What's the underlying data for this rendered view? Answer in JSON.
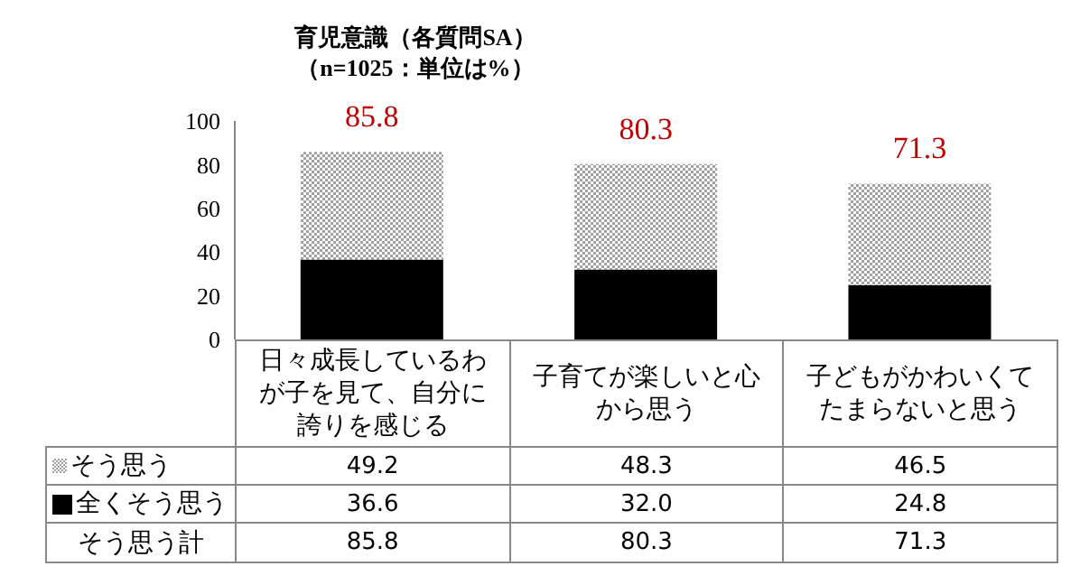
{
  "chart_data": {
    "type": "bar",
    "stacked": true,
    "title": "育児意識（各質問SA）",
    "subtitle": "（n=1025：単位は%）",
    "categories": [
      "日々成長しているわが子を見て、自分に誇りを感じる",
      "子育てが楽しいと心から思う",
      "子どもがかわいくてたまらないと思う"
    ],
    "series": [
      {
        "name": "全くそう思う",
        "color": "#000000",
        "values": [
          36.6,
          32.0,
          24.8
        ],
        "value_labels": [
          "36.6",
          "32.0",
          "24.8"
        ]
      },
      {
        "name": "そう思う",
        "color": "#a0a0a0",
        "values": [
          49.2,
          48.3,
          46.5
        ],
        "value_labels": [
          "49.2",
          "48.3",
          "46.5"
        ]
      }
    ],
    "totals": [
      "85.8",
      "80.3",
      "71.3"
    ],
    "annotations": [
      "そう思う計"
    ],
    "ylim": [
      0,
      100
    ],
    "yticks": [
      0,
      20,
      40,
      60,
      80,
      100
    ],
    "legend": "bottom left"
  }
}
